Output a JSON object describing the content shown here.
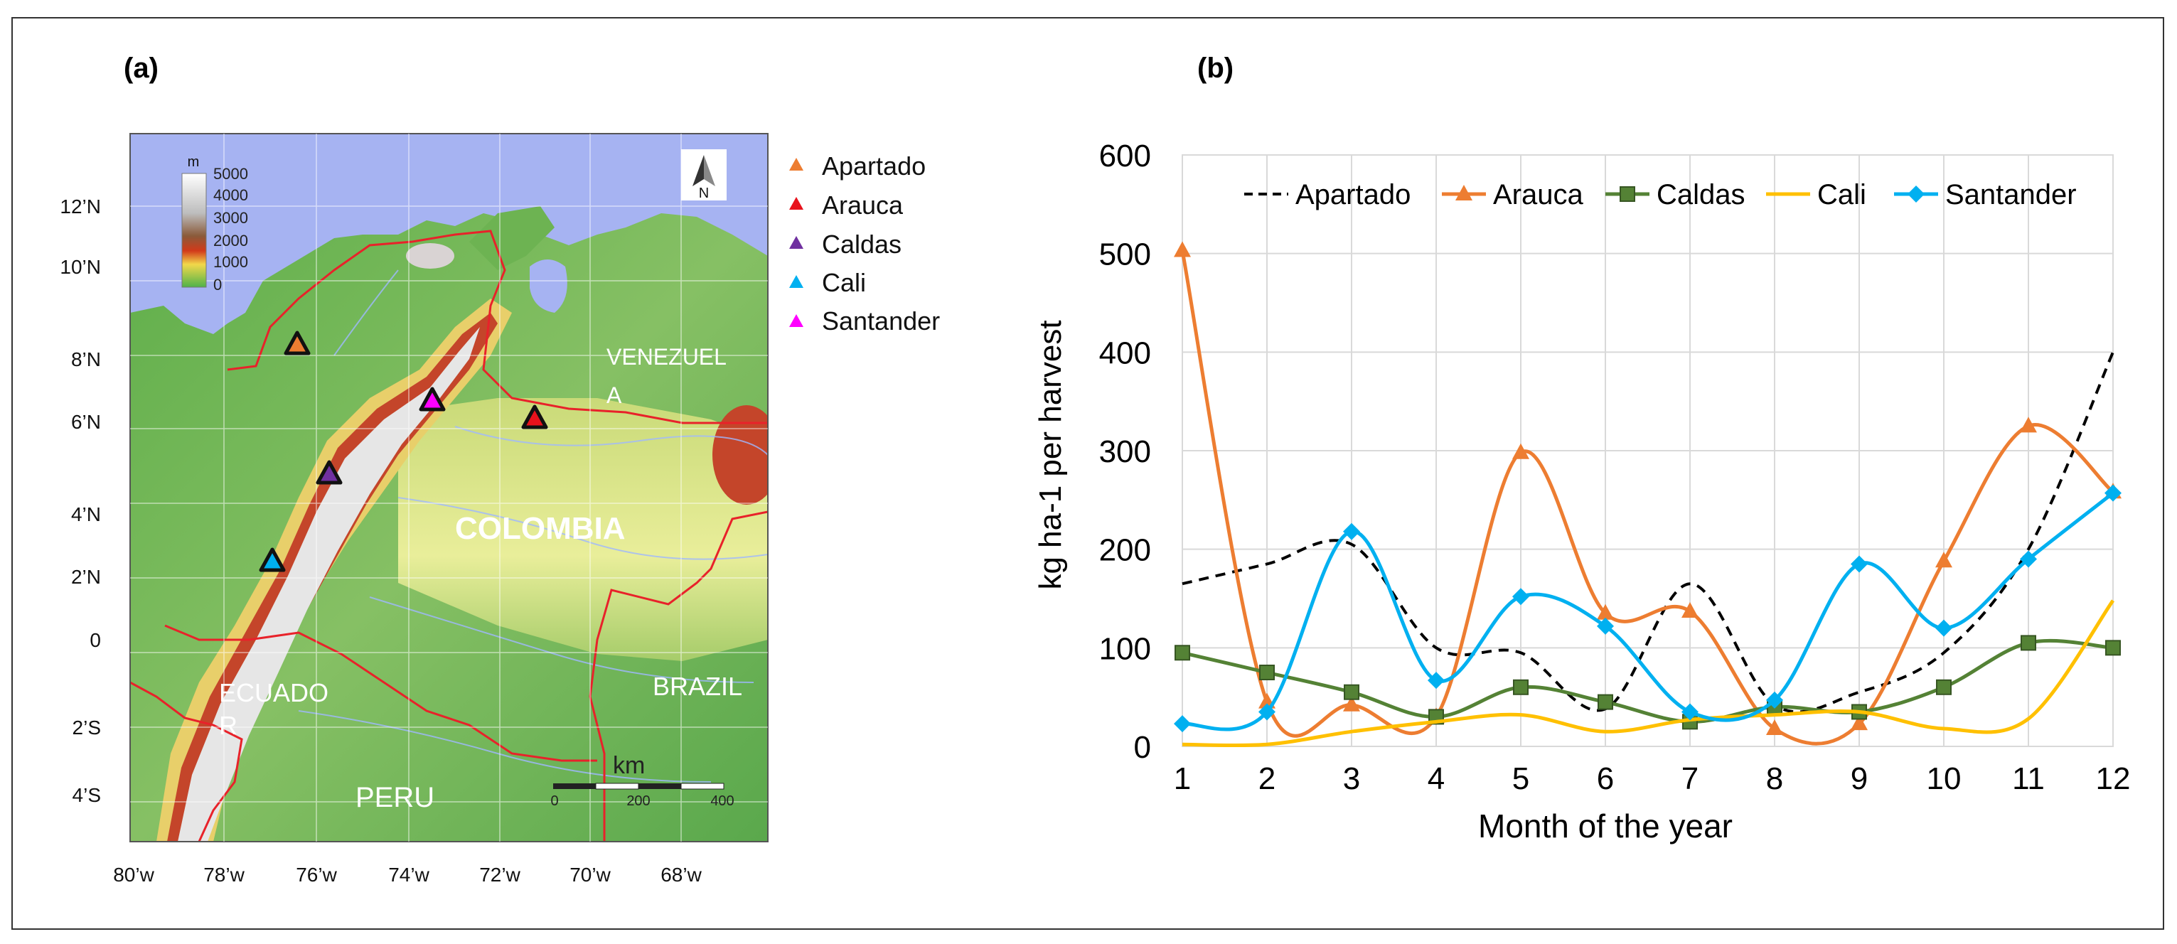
{
  "panels": {
    "a_label": "(a)",
    "b_label": "(b)"
  },
  "map": {
    "legend_unit": "m",
    "elevation_ticks": [
      "5000",
      "4000",
      "3000",
      "2000",
      "1000",
      "0"
    ],
    "north_label": "N",
    "lat_labels": [
      "12’N",
      "10’N",
      "8’N",
      "6’N",
      "4’N",
      "2’N",
      "0",
      "2’S",
      "4’S"
    ],
    "lon_labels": [
      "80’w",
      "78’w",
      "76’w",
      "74’w",
      "72’w",
      "70’w",
      "68’w"
    ],
    "countries": {
      "colombia": "COLOMBIA",
      "venezuela_1": "VENEZUEL",
      "venezuela_2": "A",
      "ecuador_1": "ECUADO",
      "ecuador_2": "R",
      "brazil": "BRAZIL",
      "peru": "PERU"
    },
    "scale": {
      "unit": "km",
      "ticks": [
        "0",
        "200",
        "400"
      ]
    },
    "sites": [
      {
        "name": "Apartado",
        "color": "#ED7D31"
      },
      {
        "name": "Arauca",
        "color": "#E8121C"
      },
      {
        "name": "Caldas",
        "color": "#7030A0"
      },
      {
        "name": "Cali",
        "color": "#00B0F0"
      },
      {
        "name": "Santander",
        "color": "#FF00FF"
      }
    ]
  },
  "chart_data": {
    "type": "line",
    "title": "",
    "xlabel": "Month of the year",
    "ylabel": "kg ha-1 per harvest",
    "categories": [
      "1",
      "2",
      "3",
      "4",
      "5",
      "6",
      "7",
      "8",
      "9",
      "10",
      "11",
      "12"
    ],
    "yticks": [
      "0",
      "100",
      "200",
      "300",
      "400",
      "500",
      "600"
    ],
    "ylim": [
      0,
      600
    ],
    "grid": true,
    "legend_position": "top",
    "series": [
      {
        "name": "Apartado",
        "color": "#000000",
        "dash": true,
        "marker": "none",
        "values": [
          165,
          185,
          205,
          100,
          95,
          38,
          165,
          42,
          55,
          95,
          200,
          400
        ]
      },
      {
        "name": "Arauca",
        "color": "#ED7D31",
        "dash": false,
        "marker": "triangle",
        "values": [
          503,
          45,
          42,
          30,
          298,
          135,
          137,
          18,
          23,
          188,
          325,
          258
        ]
      },
      {
        "name": "Caldas",
        "color": "#548235",
        "dash": false,
        "marker": "square",
        "values": [
          95,
          75,
          55,
          30,
          60,
          45,
          25,
          40,
          35,
          60,
          105,
          100
        ]
      },
      {
        "name": "Cali",
        "color": "#FFC000",
        "dash": false,
        "marker": "none",
        "values": [
          2,
          2,
          15,
          25,
          32,
          15,
          27,
          32,
          35,
          18,
          28,
          148
        ]
      },
      {
        "name": "Santander",
        "color": "#00B0F0",
        "dash": false,
        "marker": "diamond",
        "values": [
          23,
          35,
          218,
          67,
          152,
          122,
          35,
          47,
          185,
          120,
          190,
          257
        ]
      }
    ]
  }
}
